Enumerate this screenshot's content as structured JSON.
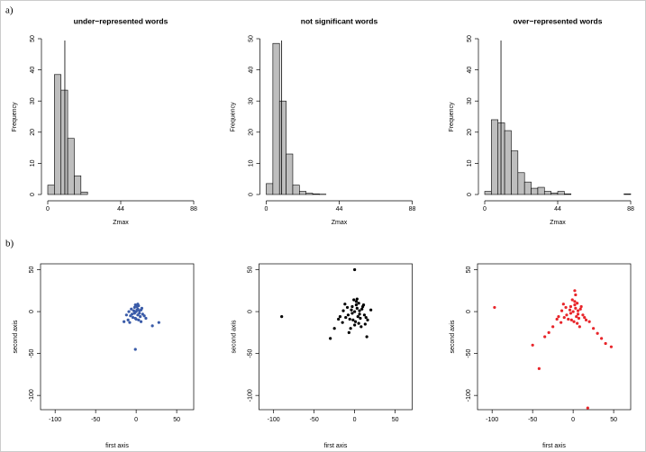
{
  "panel_labels": [
    "a)",
    "b)"
  ],
  "chart_data": [
    {
      "type": "histogram",
      "title": "under−represented words",
      "x_label": "Zmax",
      "y_label": "Frequency",
      "color": "#bebebe",
      "bins": [
        0,
        4,
        8,
        12,
        16,
        20,
        24
      ],
      "values": [
        3,
        38.5,
        33.5,
        18,
        6,
        0.8
      ],
      "vline": 10.3,
      "xlim": [
        0,
        88
      ],
      "xticks": [
        0,
        44,
        88
      ],
      "ylim": [
        0,
        50
      ],
      "yticks": [
        0,
        10,
        20,
        30,
        40,
        50
      ]
    },
    {
      "type": "histogram",
      "title": "not significant words",
      "x_label": "Zmax",
      "y_label": "Frequency",
      "color": "#bebebe",
      "bins": [
        0,
        4,
        8,
        12,
        16,
        20,
        24,
        28,
        32,
        36
      ],
      "values": [
        3.5,
        48.5,
        30,
        13,
        3,
        1,
        0.4,
        0.2,
        0.1
      ],
      "vline": 9.3,
      "xlim": [
        0,
        88
      ],
      "xticks": [
        0,
        44,
        88
      ],
      "ylim": [
        0,
        50
      ],
      "yticks": [
        0,
        10,
        20,
        30,
        40,
        50
      ]
    },
    {
      "type": "histogram",
      "title": "over−represented words",
      "x_label": "Zmax",
      "y_label": "Frequency",
      "color": "#bebebe",
      "bins": [
        0,
        4,
        8,
        12,
        16,
        20,
        24,
        28,
        32,
        36,
        40,
        44,
        48,
        52,
        56,
        60,
        64,
        68,
        72,
        76,
        80,
        84,
        88
      ],
      "values": [
        1,
        24,
        23,
        20.5,
        14,
        7,
        4,
        2,
        2.3,
        1,
        0.5,
        1,
        0.2,
        0,
        0,
        0,
        0,
        0,
        0,
        0,
        0,
        0.2
      ],
      "vline": 9.8,
      "xlim": [
        0,
        88
      ],
      "xticks": [
        0,
        44,
        88
      ],
      "ylim": [
        0,
        50
      ],
      "yticks": [
        0,
        10,
        20,
        30,
        40,
        50
      ]
    },
    {
      "type": "scatter",
      "x_label": "first axis",
      "y_label": "second axis",
      "color": "#3a5ba8",
      "x": [
        0,
        2,
        -3,
        4,
        -5,
        1,
        3,
        -2,
        6,
        -7,
        5,
        -1,
        8,
        -9,
        2,
        -4,
        0,
        7,
        -6,
        3,
        10,
        -10,
        1,
        -2,
        4,
        -1,
        2,
        -12,
        12,
        28,
        20,
        -15,
        -1,
        6,
        -8
      ],
      "values": [
        0,
        3,
        1,
        -2,
        -3,
        6,
        7,
        5,
        2,
        -5,
        -6,
        -8,
        -3,
        0,
        -4,
        -7,
        -9,
        4,
        3,
        -10,
        -5,
        -10,
        2,
        -2,
        1,
        8,
        9,
        -4,
        -8,
        -13,
        -17,
        -12,
        -45,
        -12,
        -13
      ],
      "xlim": [
        -118,
        71
      ],
      "xticks": [
        -100,
        -50,
        0,
        50
      ],
      "ylim": [
        -117,
        57
      ],
      "yticks": [
        -100,
        -50,
        0,
        50
      ]
    },
    {
      "type": "scatter",
      "x_label": "first axis",
      "y_label": "second axis",
      "color": "#000000",
      "x": [
        0,
        3,
        -4,
        6,
        -8,
        2,
        5,
        -3,
        9,
        -11,
        7,
        -2,
        12,
        -14,
        4,
        -6,
        1,
        10,
        -9,
        5,
        14,
        -15,
        2,
        -3,
        6,
        -1,
        3,
        -18,
        16,
        -20,
        8,
        -12,
        11,
        -5,
        0,
        -90,
        0,
        -30,
        15,
        -25,
        20,
        -7,
        13
      ],
      "values": [
        0,
        4,
        2,
        -3,
        -4,
        8,
        10,
        6,
        3,
        -7,
        -8,
        -10,
        -4,
        1,
        -6,
        -9,
        -12,
        6,
        5,
        -14,
        -7,
        -13,
        12,
        -2,
        1,
        14,
        15,
        -6,
        -10,
        -9,
        -18,
        9,
        8,
        -20,
        -16,
        -6,
        50,
        -32,
        -30,
        -20,
        2,
        -25,
        -15
      ],
      "xlim": [
        -118,
        71
      ],
      "xticks": [
        -100,
        -50,
        0,
        50
      ],
      "ylim": [
        -117,
        57
      ],
      "yticks": [
        -100,
        -50,
        0,
        50
      ]
    },
    {
      "type": "scatter",
      "x_label": "first axis",
      "y_label": "second axis",
      "color": "#e8252a",
      "x": [
        0,
        3,
        -4,
        6,
        -8,
        2,
        5,
        -3,
        9,
        -11,
        7,
        -2,
        12,
        -14,
        4,
        -6,
        1,
        10,
        -9,
        5,
        14,
        -15,
        2,
        -3,
        6,
        -1,
        3,
        -18,
        16,
        -20,
        8,
        -12,
        20,
        25,
        30,
        35,
        40,
        -25,
        -30,
        -97,
        -42,
        18,
        47,
        -50,
        -35,
        2
      ],
      "values": [
        0,
        4,
        2,
        -3,
        -4,
        8,
        10,
        6,
        3,
        -7,
        -8,
        -10,
        -4,
        1,
        -6,
        -9,
        -12,
        6,
        5,
        -14,
        -7,
        -13,
        12,
        -2,
        1,
        14,
        20,
        -6,
        -10,
        -9,
        -18,
        9,
        -12,
        -20,
        -26,
        -32,
        -38,
        -18,
        -25,
        5,
        -68,
        -115,
        -42,
        -40,
        -30,
        25
      ],
      "xlim": [
        -118,
        71
      ],
      "xticks": [
        -100,
        -50,
        0,
        50
      ],
      "ylim": [
        -117,
        57
      ],
      "yticks": [
        -100,
        -50,
        0,
        50
      ]
    }
  ]
}
